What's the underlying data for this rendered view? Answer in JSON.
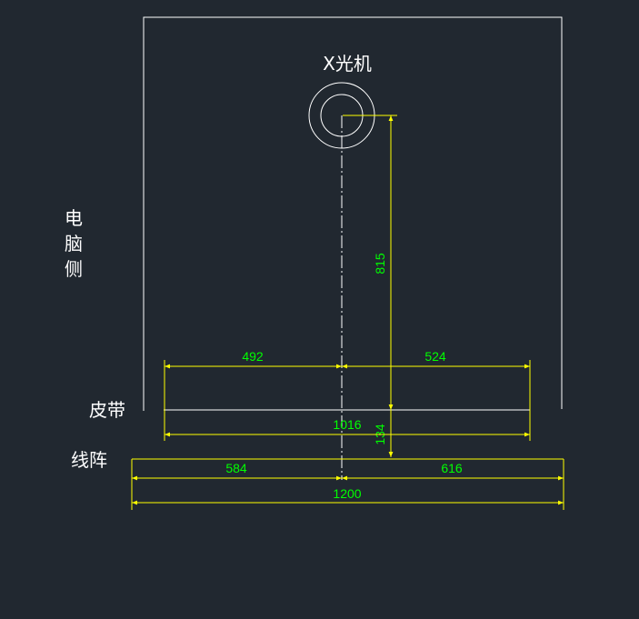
{
  "labels": {
    "xray_machine": "X光机",
    "computer_side": [
      "电",
      "脑",
      "侧"
    ],
    "belt": "皮带",
    "line_array": "线阵"
  },
  "dimensions": {
    "vertical_upper": "815",
    "vertical_lower": "134",
    "belt_left": "492",
    "belt_right": "524",
    "belt_total": "1016",
    "array_left": "584",
    "array_right": "616",
    "array_total": "1200"
  },
  "colors": {
    "background": "#212830",
    "outline": "#ffffff",
    "dimension_line": "#ffff00",
    "dimension_text": "#00ff00"
  }
}
